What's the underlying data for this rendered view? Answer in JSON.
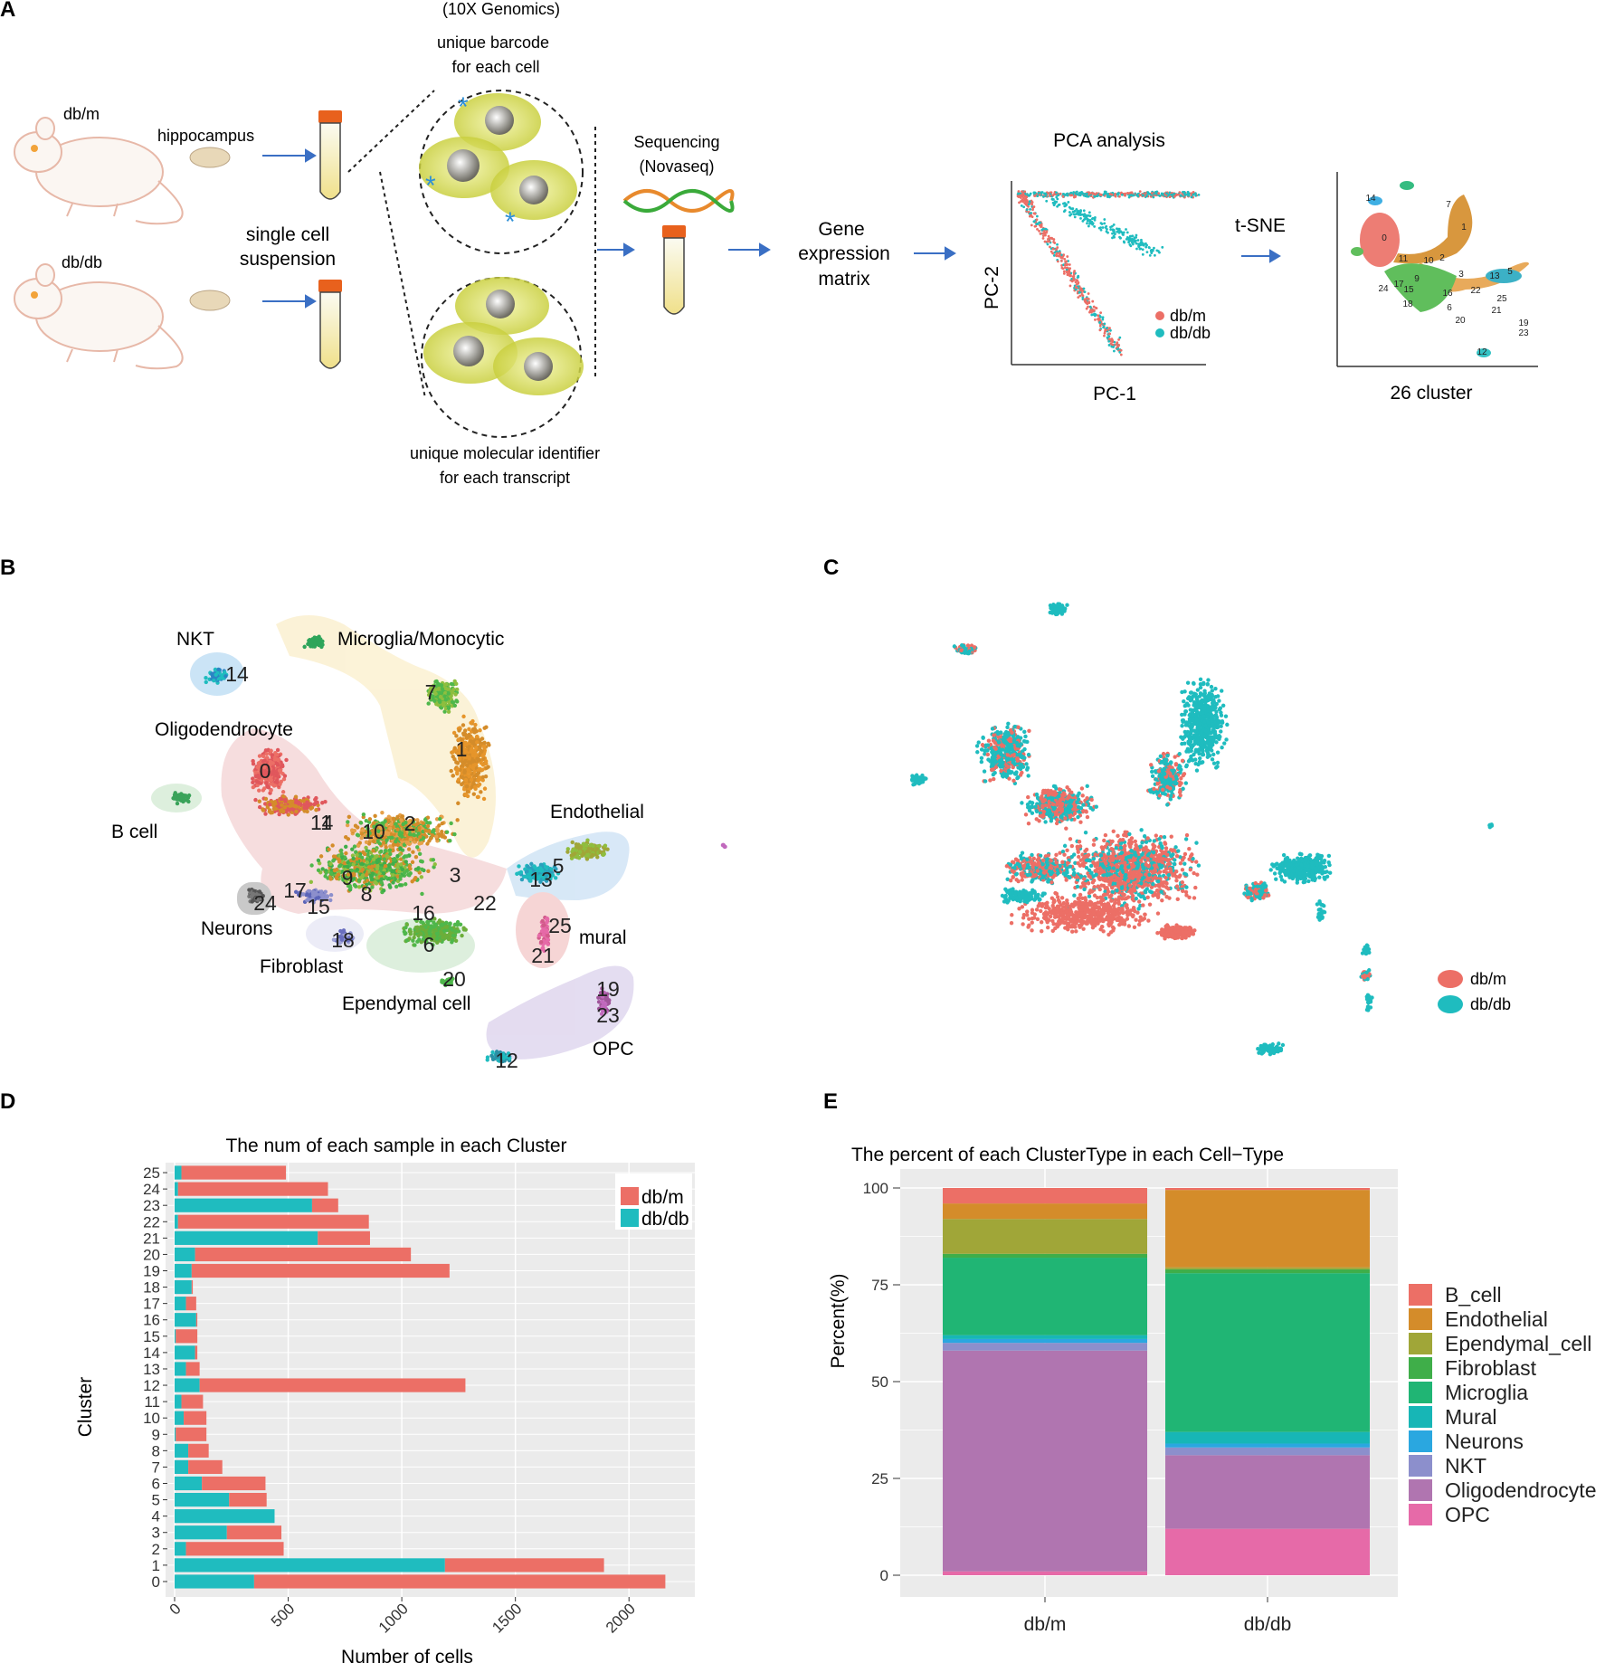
{
  "panels": {
    "a": "A",
    "b": "B",
    "c": "C",
    "d": "D",
    "e": "E"
  },
  "panel_a": {
    "genomics": "(10X Genomics)",
    "barcode": [
      "unique barcode",
      "for each cell"
    ],
    "dbm_label": "db/m",
    "dbdb_label": "db/db",
    "hippocampus": "hippocampus",
    "suspension": [
      "single cell",
      "suspension"
    ],
    "sequencing": [
      "Sequencing",
      "(Novaseq)"
    ],
    "umi": [
      "unique molecular identifier",
      "for each transcript"
    ],
    "gene_matrix": [
      "Gene",
      "expression",
      "matrix"
    ],
    "pca_title": "PCA analysis",
    "pc1": "PC-1",
    "pc2": "PC-2",
    "legend": [
      "db/m",
      "db/db"
    ],
    "tsne": "t-SNE",
    "clusters": "26 cluster",
    "mini_labels": [
      "14",
      "7",
      "1",
      "0",
      "11",
      "10",
      "2",
      "9",
      "3",
      "13",
      "5",
      "24",
      "17",
      "15",
      "16",
      "18",
      "6",
      "20",
      "22",
      "21",
      "25",
      "19",
      "23",
      "12"
    ]
  },
  "panel_b": {
    "cell_types": [
      "NKT",
      "Microglia/Monocytic",
      "Oligodendrocyte",
      "B cell",
      "Endothelial",
      "Neurons",
      "Fibroblast",
      "mural",
      "Ependymal cell",
      "OPC"
    ],
    "cluster_ids": [
      "14",
      "7",
      "1",
      "0",
      "11",
      "4",
      "10",
      "2",
      "9",
      "8",
      "3",
      "13",
      "5",
      "17",
      "24",
      "15",
      "16",
      "22",
      "18",
      "6",
      "25",
      "21",
      "20",
      "19",
      "23",
      "12"
    ]
  },
  "panel_c": {
    "legend": [
      "db/m",
      "db/db"
    ]
  },
  "colors": {
    "dbm": "#ec6f66",
    "dbdb": "#1fbcbf"
  },
  "chart_data": [
    {
      "type": "bar",
      "orientation": "horizontal",
      "stacked": true,
      "title": "The num of each sample in each Cluster",
      "xlabel": "Number of cells",
      "ylabel": "Cluster",
      "categories": [
        "0",
        "1",
        "2",
        "3",
        "4",
        "5",
        "6",
        "7",
        "8",
        "9",
        "10",
        "11",
        "12",
        "13",
        "14",
        "15",
        "16",
        "17",
        "18",
        "19",
        "20",
        "21",
        "22",
        "23",
        "24",
        "25"
      ],
      "series": [
        {
          "name": "db/db",
          "color": "#1fbcbf",
          "values": [
            350,
            1190,
            50,
            230,
            440,
            240,
            120,
            60,
            60,
            5,
            40,
            30,
            110,
            50,
            90,
            5,
            95,
            50,
            75,
            75,
            90,
            630,
            15,
            605,
            15,
            30
          ]
        },
        {
          "name": "db/m",
          "color": "#ec6f66",
          "values": [
            1810,
            700,
            430,
            240,
            0,
            165,
            280,
            150,
            90,
            135,
            100,
            95,
            1170,
            60,
            10,
            95,
            5,
            45,
            5,
            1135,
            950,
            230,
            840,
            115,
            660,
            460
          ]
        }
      ],
      "xlim": [
        0,
        2250
      ],
      "xticks": [
        "0",
        "500",
        "1000",
        "1500",
        "2000"
      ],
      "legend": [
        "db/m",
        "db/db"
      ],
      "legend_position": "top-right"
    },
    {
      "type": "bar",
      "stacked": true,
      "title": "The percent of each ClusterType in each Cell−Type",
      "xlabel": "",
      "ylabel": "Percent(%)",
      "categories": [
        "db/m",
        "db/db"
      ],
      "ylim": [
        0,
        100
      ],
      "yticks": [
        "0",
        "25",
        "50",
        "75",
        "100"
      ],
      "series": [
        {
          "name": "OPC",
          "color": "#e66aa8",
          "values": [
            1,
            12
          ]
        },
        {
          "name": "Oligodendrocyte",
          "color": "#b075b0",
          "values": [
            57,
            19
          ]
        },
        {
          "name": "NKT",
          "color": "#8c8fcc",
          "values": [
            2,
            2
          ]
        },
        {
          "name": "Neurons",
          "color": "#2aa7e0",
          "values": [
            1,
            1
          ]
        },
        {
          "name": "Mural",
          "color": "#17b6b6",
          "values": [
            1,
            3
          ]
        },
        {
          "name": "Microglia",
          "color": "#20b574",
          "values": [
            20,
            41
          ]
        },
        {
          "name": "Fibroblast",
          "color": "#3fae49",
          "values": [
            1,
            1
          ]
        },
        {
          "name": "Ependymal_cell",
          "color": "#a0a638",
          "values": [
            9,
            0.5
          ]
        },
        {
          "name": "Endothelial",
          "color": "#d48c2a",
          "values": [
            4,
            20
          ]
        },
        {
          "name": "B_cell",
          "color": "#ec6f66",
          "values": [
            4,
            0.5
          ]
        }
      ],
      "legend": [
        "B_cell",
        "Endothelial",
        "Ependymal_cell",
        "Fibroblast",
        "Microglia",
        "Mural",
        "Neurons",
        "NKT",
        "Oligodendrocyte",
        "OPC"
      ],
      "legend_position": "right"
    }
  ]
}
